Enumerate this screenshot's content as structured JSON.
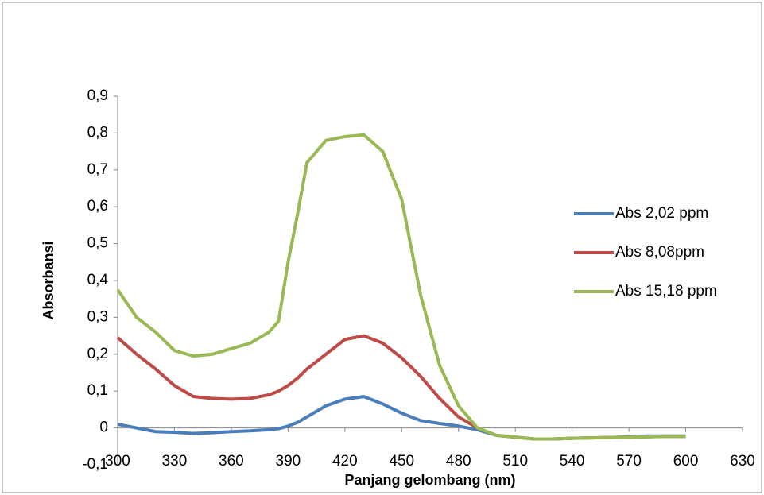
{
  "chart_data": {
    "type": "line",
    "x_label": "Panjang gelombang (nm)",
    "y_label": "Absorbansi",
    "x": [
      300,
      310,
      320,
      330,
      340,
      350,
      360,
      370,
      380,
      385,
      390,
      395,
      400,
      410,
      420,
      430,
      440,
      450,
      460,
      470,
      480,
      490,
      500,
      510,
      520,
      530,
      540,
      550,
      560,
      570,
      580,
      590,
      600
    ],
    "series": [
      {
        "name": "Abs 2,02 ppm",
        "color": "#4a7ebb",
        "values": [
          0.01,
          0.0,
          -0.01,
          -0.012,
          -0.015,
          -0.013,
          -0.01,
          -0.008,
          -0.005,
          -0.002,
          0.005,
          0.015,
          0.03,
          0.06,
          0.078,
          0.085,
          0.065,
          0.04,
          0.02,
          0.012,
          0.005,
          -0.005,
          -0.02,
          -0.025,
          -0.03,
          -0.03,
          -0.028,
          -0.027,
          -0.026,
          -0.024,
          -0.022,
          -0.022,
          -0.022
        ]
      },
      {
        "name": "Abs 8,08ppm",
        "color": "#be4b48",
        "values": [
          0.245,
          0.2,
          0.16,
          0.115,
          0.085,
          0.08,
          0.078,
          0.08,
          0.09,
          0.1,
          0.115,
          0.135,
          0.16,
          0.2,
          0.24,
          0.25,
          0.23,
          0.19,
          0.14,
          0.08,
          0.03,
          0.0,
          -0.02,
          -0.025,
          -0.03,
          -0.03,
          -0.028,
          -0.027,
          -0.026,
          -0.025,
          -0.024,
          -0.023,
          -0.023
        ]
      },
      {
        "name": "Abs 15,18 ppm",
        "color": "#98b954",
        "values": [
          0.375,
          0.3,
          0.26,
          0.21,
          0.195,
          0.2,
          0.215,
          0.23,
          0.26,
          0.29,
          0.45,
          0.58,
          0.72,
          0.78,
          0.79,
          0.795,
          0.75,
          0.62,
          0.36,
          0.17,
          0.06,
          0.0,
          -0.02,
          -0.025,
          -0.03,
          -0.03,
          -0.028,
          -0.027,
          -0.026,
          -0.025,
          -0.024,
          -0.023,
          -0.023
        ]
      }
    ],
    "xlim": [
      300,
      630
    ],
    "xticks": [
      300,
      330,
      360,
      390,
      420,
      450,
      480,
      510,
      540,
      570,
      600,
      630
    ],
    "ylim": [
      -0.1,
      0.9
    ],
    "yticks": [
      {
        "value": -0.1,
        "label": "-0,1"
      },
      0,
      {
        "value": 0.1,
        "label": "0,1"
      },
      {
        "value": 0.2,
        "label": "0,2"
      },
      {
        "value": 0.3,
        "label": "0,3"
      },
      {
        "value": 0.4,
        "label": "0,4"
      },
      {
        "value": 0.5,
        "label": "0,5"
      },
      {
        "value": 0.6,
        "label": "0,6"
      },
      {
        "value": 0.7,
        "label": "0,7"
      },
      {
        "value": 0.8,
        "label": "0,8"
      },
      {
        "value": 0.9,
        "label": "0,9"
      }
    ],
    "legend": "right",
    "grid": false
  }
}
